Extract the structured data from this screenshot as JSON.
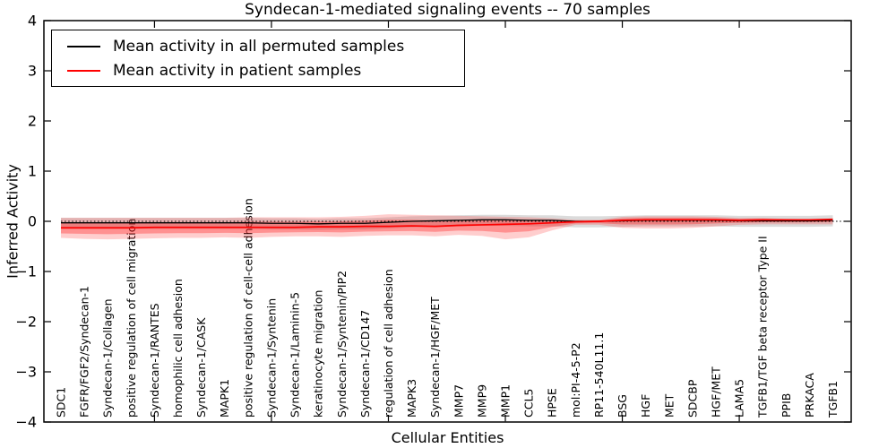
{
  "chart": {
    "title": "Syndecan-1-mediated signaling events -- 70 samples",
    "xlabel": "Cellular Entities",
    "ylabel": "Inferred Activity"
  },
  "legend": {
    "items": [
      {
        "label": "Mean activity in all permuted samples",
        "color": "#000000"
      },
      {
        "label": "Mean activity in patient samples",
        "color": "#ff0000"
      }
    ]
  },
  "chart_data": {
    "type": "line",
    "title": "Syndecan-1-mediated signaling events -- 70 samples",
    "xlabel": "Cellular Entities",
    "ylabel": "Inferred Activity",
    "ylim": [
      -4,
      4
    ],
    "yticks": [
      4,
      3,
      2,
      1,
      0,
      -1,
      -2,
      -3,
      -4
    ],
    "grid": false,
    "legend_position": "upper left",
    "zero_line": {
      "y": 0,
      "style": "dotted",
      "color": "#000000"
    },
    "x_major_tick_every": 5,
    "categories": [
      "SDC1",
      "FGFR/FGF2/Syndecan-1",
      "Syndecan-1/Collagen",
      "positive regulation of cell migration",
      "Syndecan-1/RANTES",
      "homophilic cell adhesion",
      "Syndecan-1/CASK",
      "MAPK1",
      "positive regulation of cell-cell adhesion",
      "Syndecan-1/Syntenin",
      "Syndecan-1/Laminin-5",
      "keratinocyte migration",
      "Syndecan-1/Syntenin/PIP2",
      "Syndecan-1/CD147",
      "regulation of cell adhesion",
      "MAPK3",
      "Syndecan-1/HGF/MET",
      "MMP7",
      "MMP9",
      "MMP1",
      "CCL5",
      "HPSE",
      "mol:PI-4-5-P2",
      "RP11-540L11.1",
      "BSG",
      "HGF",
      "MET",
      "SDCBP",
      "HGF/MET",
      "LAMA5",
      "TGFB1/TGF beta receptor Type II",
      "PPIB",
      "PRKACA",
      "TGFB1"
    ],
    "series": [
      {
        "name": "Mean activity in all permuted samples",
        "color": "#000000",
        "band_color": "#b0b0b0",
        "values": [
          -0.03,
          -0.03,
          -0.03,
          -0.03,
          -0.03,
          -0.03,
          -0.03,
          -0.03,
          -0.03,
          -0.04,
          -0.04,
          -0.05,
          -0.04,
          -0.04,
          -0.02,
          0.0,
          0.01,
          0.02,
          0.03,
          0.03,
          0.02,
          0.02,
          0.0,
          0.0,
          0.01,
          0.02,
          0.02,
          0.02,
          0.02,
          0.01,
          0.01,
          0.01,
          0.01,
          0.02
        ],
        "band_upper": [
          0.07,
          0.07,
          0.07,
          0.07,
          0.07,
          0.07,
          0.07,
          0.07,
          0.07,
          0.06,
          0.06,
          0.05,
          0.06,
          0.06,
          0.08,
          0.1,
          0.11,
          0.12,
          0.13,
          0.13,
          0.12,
          0.12,
          0.1,
          0.1,
          0.11,
          0.12,
          0.12,
          0.12,
          0.12,
          0.11,
          0.11,
          0.11,
          0.11,
          0.12
        ],
        "band_lower": [
          -0.15,
          -0.15,
          -0.15,
          -0.15,
          -0.15,
          -0.15,
          -0.15,
          -0.15,
          -0.15,
          -0.16,
          -0.16,
          -0.17,
          -0.16,
          -0.16,
          -0.14,
          -0.12,
          -0.11,
          -0.1,
          -0.09,
          -0.09,
          -0.1,
          -0.1,
          -0.12,
          -0.12,
          -0.11,
          -0.1,
          -0.1,
          -0.1,
          -0.1,
          -0.11,
          -0.11,
          -0.11,
          -0.11,
          -0.1
        ]
      },
      {
        "name": "Mean activity in patient samples",
        "color": "#ff0000",
        "band_color": "#ff6666",
        "values": [
          -0.13,
          -0.13,
          -0.13,
          -0.13,
          -0.12,
          -0.12,
          -0.12,
          -0.12,
          -0.12,
          -0.12,
          -0.12,
          -0.11,
          -0.11,
          -0.1,
          -0.1,
          -0.09,
          -0.1,
          -0.08,
          -0.07,
          -0.06,
          -0.05,
          -0.03,
          -0.01,
          0.0,
          0.02,
          0.03,
          0.03,
          0.03,
          0.03,
          0.02,
          0.03,
          0.03,
          0.03,
          0.04
        ],
        "band_upper": [
          0.07,
          0.07,
          0.07,
          0.07,
          0.07,
          0.07,
          0.07,
          0.07,
          0.08,
          0.08,
          0.08,
          0.08,
          0.09,
          0.11,
          0.14,
          0.13,
          0.12,
          0.11,
          0.1,
          0.09,
          0.08,
          0.06,
          0.03,
          0.03,
          0.09,
          0.1,
          0.1,
          0.1,
          0.09,
          0.07,
          0.07,
          0.05,
          0.04,
          0.05
        ],
        "band_lower": [
          -0.33,
          -0.35,
          -0.36,
          -0.35,
          -0.34,
          -0.33,
          -0.33,
          -0.32,
          -0.33,
          -0.31,
          -0.3,
          -0.3,
          -0.31,
          -0.29,
          -0.28,
          -0.28,
          -0.3,
          -0.27,
          -0.29,
          -0.36,
          -0.32,
          -0.18,
          -0.07,
          -0.07,
          -0.13,
          -0.14,
          -0.14,
          -0.13,
          -0.1,
          -0.07,
          -0.06,
          -0.06,
          -0.06,
          -0.06
        ]
      }
    ]
  }
}
